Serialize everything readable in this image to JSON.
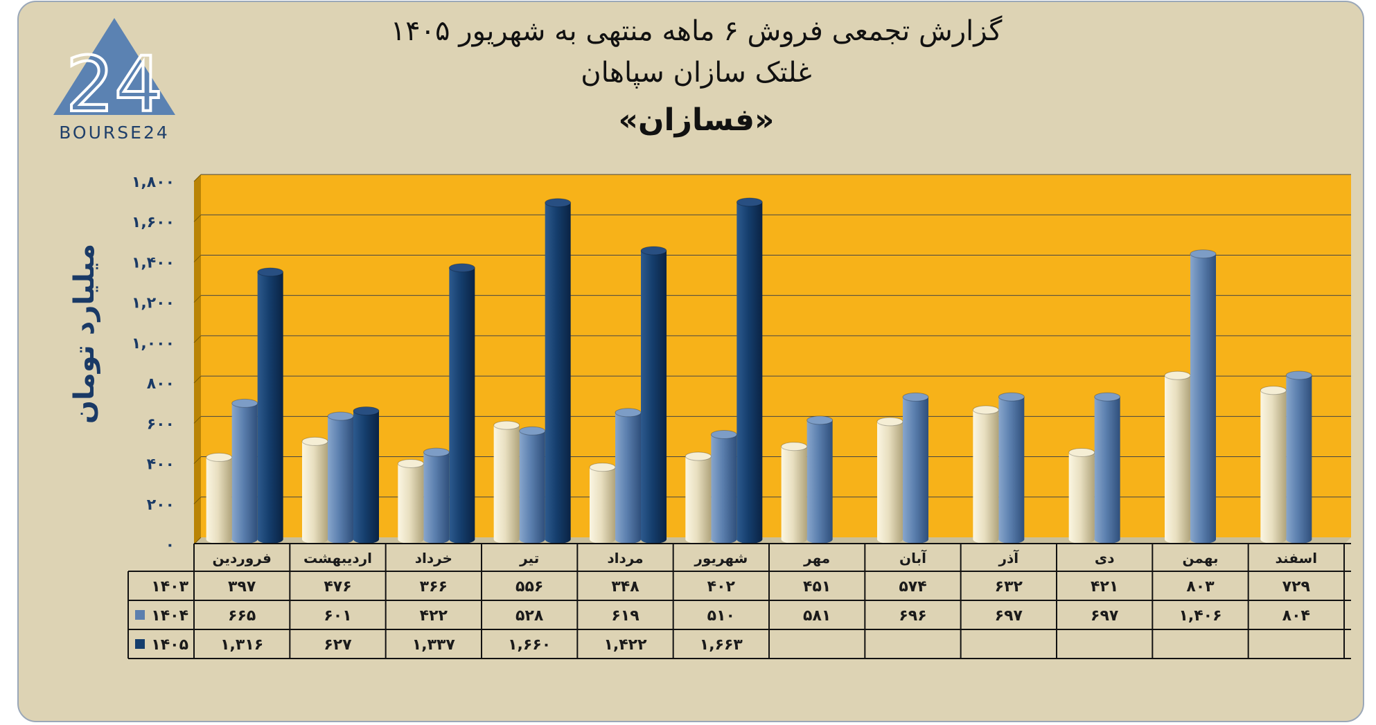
{
  "header": {
    "title_line1": "گزارش تجمعی فروش ۶ ماهه منتهی به شهریور ۱۴۰۵",
    "title_line2": "غلتک سازان سپاهان",
    "title_line3": "«فسازان»"
  },
  "logo": {
    "mark": "24",
    "text": "BOURSE24"
  },
  "colors": {
    "background": "#ddd3b4",
    "plot": "#f7b219",
    "series_1403": "#e8dfc0",
    "series_1404": "#5b7fae",
    "series_1405": "#153e6d"
  },
  "chart_data": {
    "type": "bar",
    "ylabel": "میلیارد تومان",
    "ylim": [
      0,
      1800
    ],
    "ytick_labels": [
      "۰",
      "۲۰۰",
      "۴۰۰",
      "۶۰۰",
      "۸۰۰",
      "۱,۰۰۰",
      "۱,۲۰۰",
      "۱,۴۰۰",
      "۱,۶۰۰",
      "۱,۸۰۰"
    ],
    "ytick_values": [
      0,
      200,
      400,
      600,
      800,
      1000,
      1200,
      1400,
      1600,
      1800
    ],
    "categories": [
      "فروردین",
      "اردیبهشت",
      "خرداد",
      "تیر",
      "مرداد",
      "شهریور",
      "مهر",
      "آبان",
      "آذر",
      "دی",
      "بهمن",
      "اسفند"
    ],
    "series": [
      {
        "name": "۱۴۰۳",
        "values": [
          397,
          476,
          366,
          556,
          348,
          402,
          451,
          574,
          632,
          421,
          803,
          729
        ],
        "labels": [
          "۳۹۷",
          "۴۷۶",
          "۳۶۶",
          "۵۵۶",
          "۳۴۸",
          "۴۰۲",
          "۴۵۱",
          "۵۷۴",
          "۶۳۲",
          "۴۲۱",
          "۸۰۳",
          "۷۲۹"
        ]
      },
      {
        "name": "۱۴۰۴",
        "values": [
          665,
          601,
          422,
          528,
          619,
          510,
          581,
          696,
          697,
          697,
          1406,
          804
        ],
        "labels": [
          "۶۶۵",
          "۶۰۱",
          "۴۲۲",
          "۵۲۸",
          "۶۱۹",
          "۵۱۰",
          "۵۸۱",
          "۶۹۶",
          "۶۹۷",
          "۶۹۷",
          "۱,۴۰۶",
          "۸۰۴"
        ]
      },
      {
        "name": "۱۴۰۵",
        "values": [
          1316,
          627,
          1337,
          1660,
          1422,
          1663,
          null,
          null,
          null,
          null,
          null,
          null
        ],
        "labels": [
          "۱,۳۱۶",
          "۶۲۷",
          "۱,۳۳۷",
          "۱,۶۶۰",
          "۱,۴۲۲",
          "۱,۶۶۳",
          "",
          "",
          "",
          "",
          "",
          ""
        ]
      }
    ],
    "grid": true,
    "legend": "data-table"
  }
}
